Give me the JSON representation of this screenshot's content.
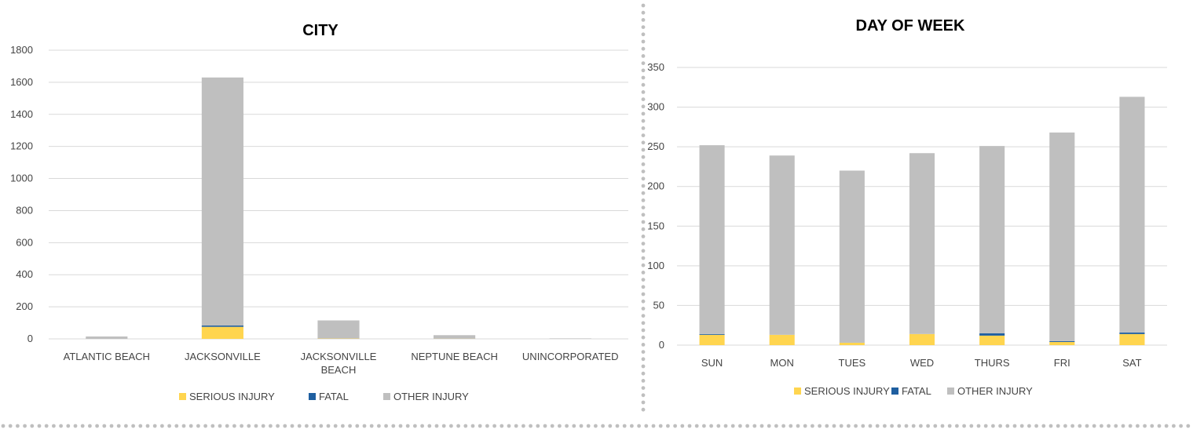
{
  "colors": {
    "serious": "#FFD54F",
    "fatal": "#1F5FA0",
    "other": "#BFBFBF",
    "grid": "#D9D9D9",
    "dots": "#BFBFBF"
  },
  "chart_data": [
    {
      "type": "bar",
      "stacked": true,
      "title": "CITY",
      "categories": [
        "ATLANTIC BEACH",
        "JACKSONVILLE",
        "JACKSONVILLE BEACH",
        "NEPTUNE BEACH",
        "UNINCORPORATED"
      ],
      "category_lines": [
        [
          "ATLANTIC BEACH"
        ],
        [
          "JACKSONVILLE"
        ],
        [
          "JACKSONVILLE",
          "BEACH"
        ],
        [
          "NEPTUNE BEACH"
        ],
        [
          "UNINCORPORATED"
        ]
      ],
      "series": [
        {
          "name": "SERIOUS INJURY",
          "values": [
            0,
            75,
            2,
            1,
            0
          ]
        },
        {
          "name": "FATAL",
          "values": [
            0,
            8,
            0,
            0,
            0
          ]
        },
        {
          "name": "OTHER INJURY",
          "values": [
            15,
            1547,
            113,
            22,
            3
          ]
        }
      ],
      "ylim": [
        0,
        1800
      ],
      "yticks": [
        0,
        200,
        400,
        600,
        800,
        1000,
        1200,
        1400,
        1600,
        1800
      ],
      "grid": true,
      "legend": "bottom"
    },
    {
      "type": "bar",
      "stacked": true,
      "title": "DAY OF WEEK",
      "categories": [
        "SUN",
        "MON",
        "TUES",
        "WED",
        "THURS",
        "FRI",
        "SAT"
      ],
      "category_lines": [
        [
          "SUN"
        ],
        [
          "MON"
        ],
        [
          "TUES"
        ],
        [
          "WED"
        ],
        [
          "THURS"
        ],
        [
          "FRI"
        ],
        [
          "SAT"
        ]
      ],
      "series": [
        {
          "name": "SERIOUS INJURY",
          "values": [
            13,
            13,
            3,
            14,
            12,
            4,
            14
          ]
        },
        {
          "name": "FATAL",
          "values": [
            1,
            0,
            0,
            0,
            3,
            1,
            2
          ]
        },
        {
          "name": "OTHER INJURY",
          "values": [
            238,
            226,
            217,
            228,
            236,
            263,
            297
          ]
        }
      ],
      "ylim": [
        0,
        350
      ],
      "yticks": [
        0,
        50,
        100,
        150,
        200,
        250,
        300,
        350
      ],
      "grid": true,
      "legend": "bottom"
    }
  ]
}
